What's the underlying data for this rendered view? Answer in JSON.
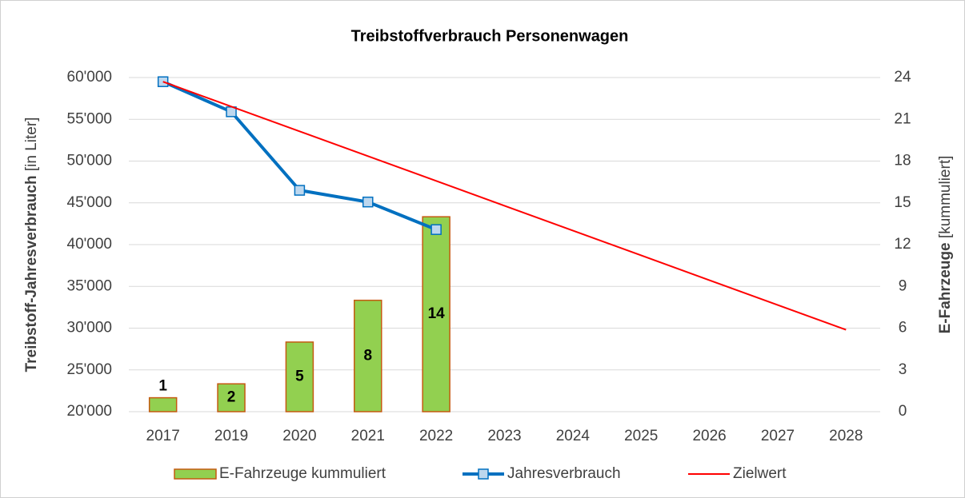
{
  "chart_data": {
    "type": "bar-line",
    "title": "Treibstoffverbrauch Personenwagen",
    "ylabel_parts": [
      "Treibstoff-Jahresverbrauch",
      "[in Liter]"
    ],
    "y2label_parts": [
      "E-Fahrzeuge",
      "[kummuliert]"
    ],
    "categories": [
      "2017",
      "2019",
      "2020",
      "2021",
      "2022",
      "2023",
      "2024",
      "2025",
      "2026",
      "2027",
      "2028"
    ],
    "series": [
      {
        "name": "E-Fahrzeuge kummuliert",
        "type": "bar",
        "axis": "y2",
        "color": "#92d050",
        "edge_color": "#c55a11",
        "values": [
          1,
          2,
          5,
          8,
          14,
          null,
          null,
          null,
          null,
          null,
          null
        ]
      },
      {
        "name": "Jahresverbrauch",
        "type": "line",
        "axis": "y",
        "color": "#0070c0",
        "marker_color": "#bdd7ee",
        "values": [
          59500,
          55900,
          46500,
          45100,
          41800,
          null,
          null,
          null,
          null,
          null,
          null
        ]
      },
      {
        "name": "Zielwert",
        "type": "line",
        "axis": "y",
        "color": "#ff0000",
        "values": [
          59500,
          56530,
          53560,
          50590,
          47620,
          44650,
          41680,
          38710,
          35740,
          32770,
          29800
        ]
      }
    ],
    "ylim": [
      20000,
      60000
    ],
    "yticks": [
      {
        "value": 20000,
        "label": "20'000"
      },
      {
        "value": 25000,
        "label": "25'000"
      },
      {
        "value": 30000,
        "label": "30'000"
      },
      {
        "value": 35000,
        "label": "35'000"
      },
      {
        "value": 40000,
        "label": "40'000"
      },
      {
        "value": 45000,
        "label": "45'000"
      },
      {
        "value": 50000,
        "label": "50'000"
      },
      {
        "value": 55000,
        "label": "55'000"
      },
      {
        "value": 60000,
        "label": "60'000"
      }
    ],
    "y2lim": [
      0,
      24
    ],
    "y2ticks": [
      0,
      3,
      6,
      9,
      12,
      15,
      18,
      21,
      24
    ],
    "grid": true
  }
}
